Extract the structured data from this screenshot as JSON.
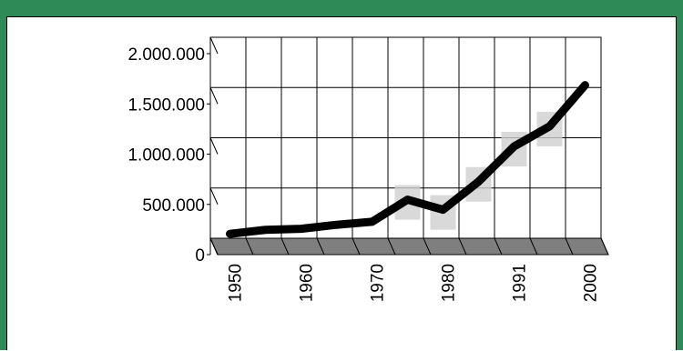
{
  "chart_data": {
    "type": "line",
    "title": "",
    "xlabel": "",
    "ylabel": "",
    "x": [
      "1950",
      "1955",
      "1960",
      "1965",
      "1970",
      "1975",
      "1980",
      "1985",
      "1991",
      "1995",
      "2000"
    ],
    "values": [
      80000,
      120000,
      130000,
      170000,
      200000,
      420000,
      320000,
      600000,
      950000,
      1150000,
      1560000
    ],
    "x_tick_labels": [
      "1950",
      "1960",
      "1970",
      "1980",
      "1991",
      "2000"
    ],
    "y_tick_labels": [
      "2.000.000",
      "1.500.000",
      "1.000.000",
      "500.000",
      "0"
    ],
    "y_ticks": [
      2000000,
      1500000,
      1000000,
      500000,
      0
    ],
    "ylim": [
      0,
      2000000
    ],
    "grid": true,
    "style": "3d",
    "colors": {
      "frame": "#2e8b57",
      "line": "#000000",
      "floor": "#7f7f7f",
      "shadow": "#d0d0d0"
    }
  }
}
